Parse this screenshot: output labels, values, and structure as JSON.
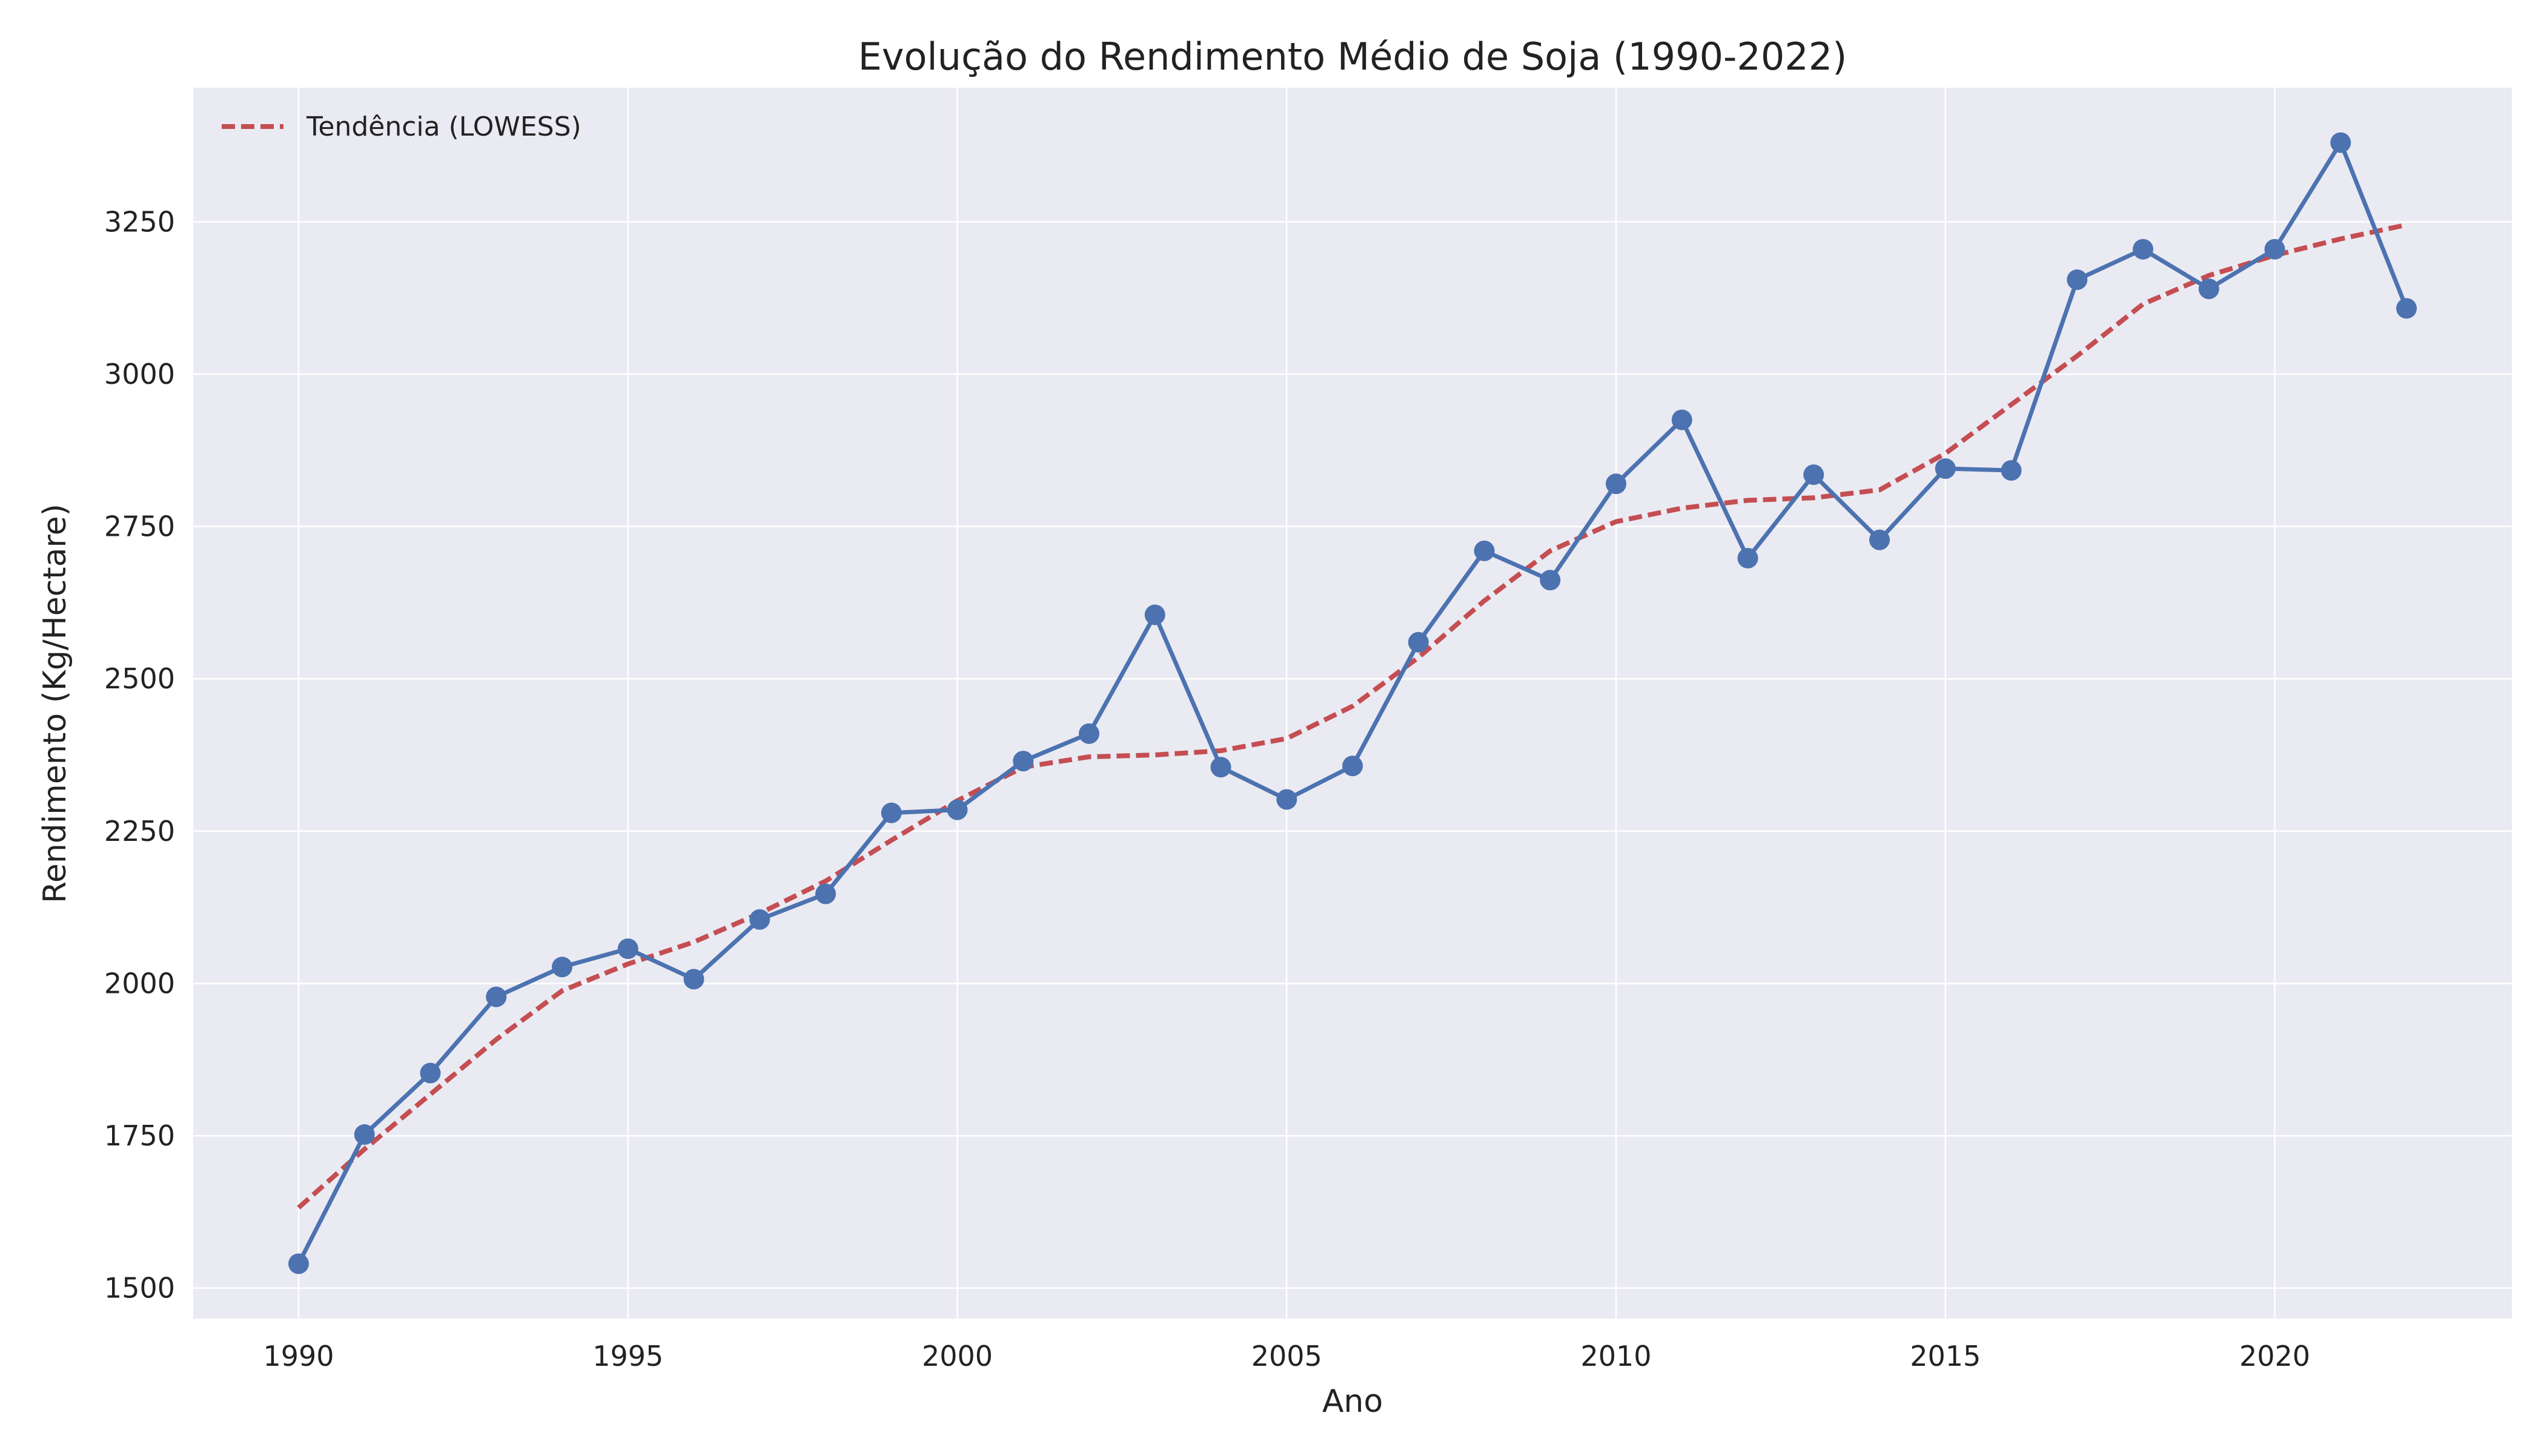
{
  "chart_data": {
    "type": "line",
    "title": "Evolução do Rendimento Médio de Soja (1990-2022)",
    "xlabel": "Ano",
    "ylabel": "Rendimento (Kg/Hectare)",
    "xlim": [
      1988.4,
      2023.6
    ],
    "ylim": [
      1450,
      3470
    ],
    "x_ticks": [
      1990,
      1995,
      2000,
      2005,
      2010,
      2015,
      2020
    ],
    "y_ticks": [
      1500,
      1750,
      2000,
      2250,
      2500,
      2750,
      3000,
      3250
    ],
    "grid": true,
    "legend_position": "top-left",
    "x": [
      1990,
      1991,
      1992,
      1993,
      1994,
      1995,
      1996,
      1997,
      1998,
      1999,
      2000,
      2001,
      2002,
      2003,
      2004,
      2005,
      2006,
      2007,
      2008,
      2009,
      2010,
      2011,
      2012,
      2013,
      2014,
      2015,
      2016,
      2017,
      2018,
      2019,
      2020,
      2021,
      2022
    ],
    "series": [
      {
        "name": "",
        "color": "#4c72b0",
        "style": "solid-with-markers",
        "values": [
          1540,
          1752,
          1853,
          1978,
          2027,
          2057,
          2007,
          2105,
          2147,
          2280,
          2285,
          2365,
          2410,
          2605,
          2355,
          2302,
          2357,
          2560,
          2710,
          2662,
          2820,
          2925,
          2698,
          2835,
          2728,
          2845,
          2842,
          3155,
          3205,
          3140,
          3205,
          3380,
          3108
        ]
      },
      {
        "name": "Tendência (LOWESS)",
        "color": "#c44e52",
        "style": "dashed",
        "values": [
          1632,
          1728,
          1818,
          1908,
          1988,
          2032,
          2068,
          2115,
          2168,
          2235,
          2300,
          2355,
          2372,
          2375,
          2382,
          2402,
          2455,
          2535,
          2628,
          2710,
          2758,
          2780,
          2793,
          2797,
          2810,
          2870,
          2950,
          3030,
          3115,
          3162,
          3195,
          3222,
          3245
        ]
      }
    ]
  }
}
